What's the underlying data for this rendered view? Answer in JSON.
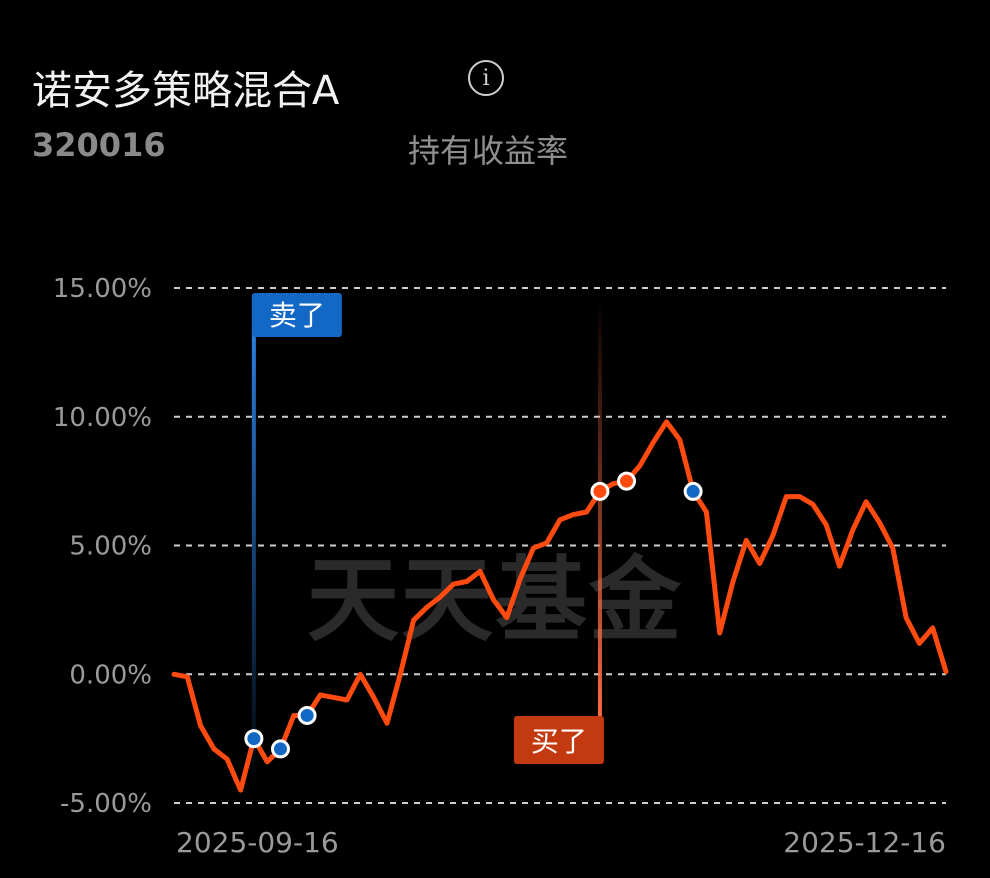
{
  "header": {
    "fund_name": "诺安多策略混合A",
    "fund_code": "320016",
    "metric_label": "持有收益率",
    "info_icon": "info-circle-icon"
  },
  "watermark": "天天基金",
  "colors": {
    "line": "#ff4a10",
    "sell": "#1268c4",
    "buy": "#c43a10",
    "grid": "#cfcfcf"
  },
  "chart_data": {
    "type": "line",
    "title": "持有收益率",
    "y_unit": "%",
    "ylim": [
      -5,
      15
    ],
    "yticks": [
      15,
      10,
      5,
      0,
      -5
    ],
    "ytick_labels": [
      "15.00%",
      "10.00%",
      "5.00%",
      "0.00%",
      "-5.00%"
    ],
    "grid": true,
    "x_labels": [
      "2025-09-16",
      "2025-12-16"
    ],
    "x_range": [
      "2025-09-16",
      "2025-12-16"
    ],
    "series": [
      {
        "values": [
          0.0,
          -0.1,
          -2.0,
          -2.9,
          -3.3,
          -4.5,
          -2.5,
          -3.4,
          -2.9,
          -1.6,
          -1.6,
          -0.8,
          -0.9,
          -1.0,
          0.0,
          -0.9,
          -1.9,
          0.0,
          2.1,
          2.6,
          3.0,
          3.5,
          3.6,
          4.0,
          2.9,
          2.2,
          3.7,
          4.9,
          5.1,
          6.0,
          6.2,
          6.3,
          7.1,
          7.4,
          7.5,
          8.1,
          9.0,
          9.8,
          9.1,
          7.1,
          6.3,
          1.6,
          3.6,
          5.2,
          4.3,
          5.4,
          6.9,
          6.9,
          6.6,
          5.8,
          4.2,
          5.6,
          6.7,
          5.9,
          4.9,
          2.2,
          1.2,
          1.8,
          0.1
        ]
      }
    ],
    "trade_points": [
      {
        "index": 6,
        "type": "sell"
      },
      {
        "index": 8,
        "type": "sell"
      },
      {
        "index": 10,
        "type": "sell"
      },
      {
        "index": 32,
        "type": "buy"
      },
      {
        "index": 34,
        "type": "buy"
      },
      {
        "index": 39,
        "type": "sell"
      }
    ],
    "markers": [
      {
        "label": "卖了",
        "index": 6,
        "type": "sell"
      },
      {
        "label": "买了",
        "index": 32,
        "type": "buy"
      }
    ]
  }
}
